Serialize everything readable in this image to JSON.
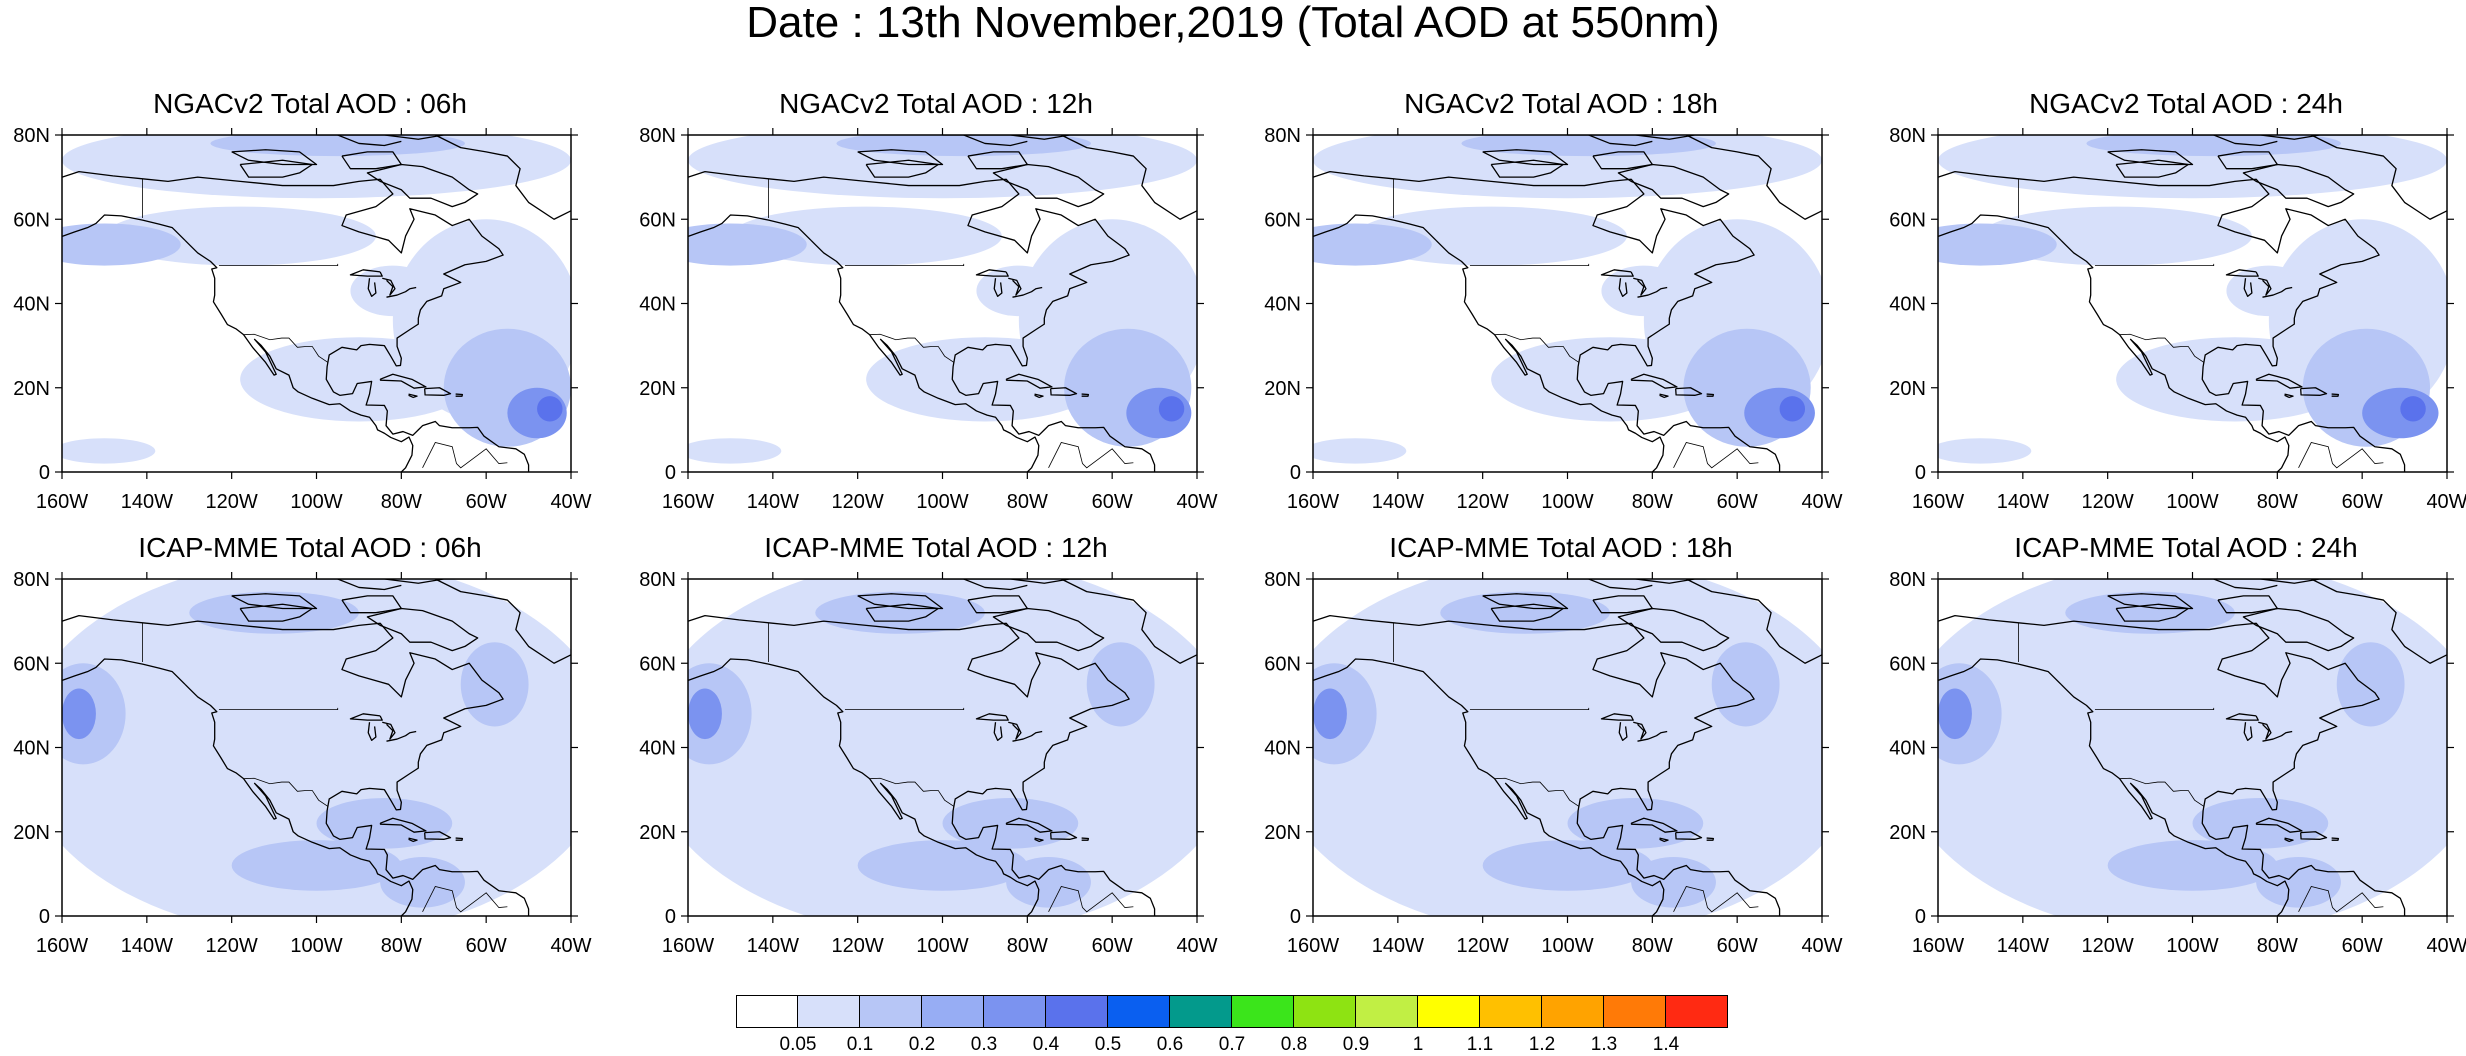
{
  "figure": {
    "main_title": "Date : 13th November,2019 (Total AOD at 550nm)"
  },
  "axes": {
    "lat_labels": [
      "80N",
      "60N",
      "40N",
      "20N",
      "0"
    ],
    "lat_values": [
      80,
      60,
      40,
      20,
      0
    ],
    "lon_labels": [
      "160W",
      "140W",
      "120W",
      "100W",
      "80W",
      "60W",
      "40W"
    ],
    "lon_values": [
      -160,
      -140,
      -120,
      -100,
      -80,
      -60,
      -40
    ],
    "lon_range": [
      -160,
      -40
    ],
    "lat_range": [
      0,
      80
    ],
    "projection": "cylindrical equidistant"
  },
  "panels": [
    {
      "title": "NGACv2 Total AOD : 06h",
      "model": "NGACv2",
      "forecast_hour": "06h",
      "row": 0,
      "col": 0
    },
    {
      "title": "NGACv2 Total AOD : 12h",
      "model": "NGACv2",
      "forecast_hour": "12h",
      "row": 0,
      "col": 1
    },
    {
      "title": "NGACv2 Total AOD : 18h",
      "model": "NGACv2",
      "forecast_hour": "18h",
      "row": 0,
      "col": 2
    },
    {
      "title": "NGACv2 Total AOD : 24h",
      "model": "NGACv2",
      "forecast_hour": "24h",
      "row": 0,
      "col": 3
    },
    {
      "title": "ICAP-MME Total AOD : 06h",
      "model": "ICAP-MME",
      "forecast_hour": "06h",
      "row": 1,
      "col": 0
    },
    {
      "title": "ICAP-MME Total AOD : 12h",
      "model": "ICAP-MME",
      "forecast_hour": "12h",
      "row": 1,
      "col": 1
    },
    {
      "title": "ICAP-MME Total AOD : 18h",
      "model": "ICAP-MME",
      "forecast_hour": "18h",
      "row": 1,
      "col": 2
    },
    {
      "title": "ICAP-MME Total AOD : 24h",
      "model": "ICAP-MME",
      "forecast_hour": "24h",
      "row": 1,
      "col": 3
    }
  ],
  "legend": {
    "colors": [
      "#ffffff",
      "#d7e0fa",
      "#b7c6f6",
      "#97adf4",
      "#7b93f0",
      "#5a72ec",
      "#0a5ff0",
      "#039a8c",
      "#3be51b",
      "#8ee312",
      "#c1ef44",
      "#ffff00",
      "#ffc000",
      "#ffa300",
      "#ff7a07",
      "#ff2a12"
    ],
    "labels": [
      "0.05",
      "0.1",
      "0.2",
      "0.3",
      "0.4",
      "0.5",
      "0.6",
      "0.7",
      "0.8",
      "0.9",
      "1",
      "1.1",
      "1.2",
      "1.3",
      "1.4"
    ]
  },
  "colors": {
    "land_outline": "#000000",
    "aod_low": "#d7e0fa",
    "aod_mid": "#b7c6f6",
    "aod_high": "#7b93f0",
    "aod_peak": "#5a72ec"
  }
}
